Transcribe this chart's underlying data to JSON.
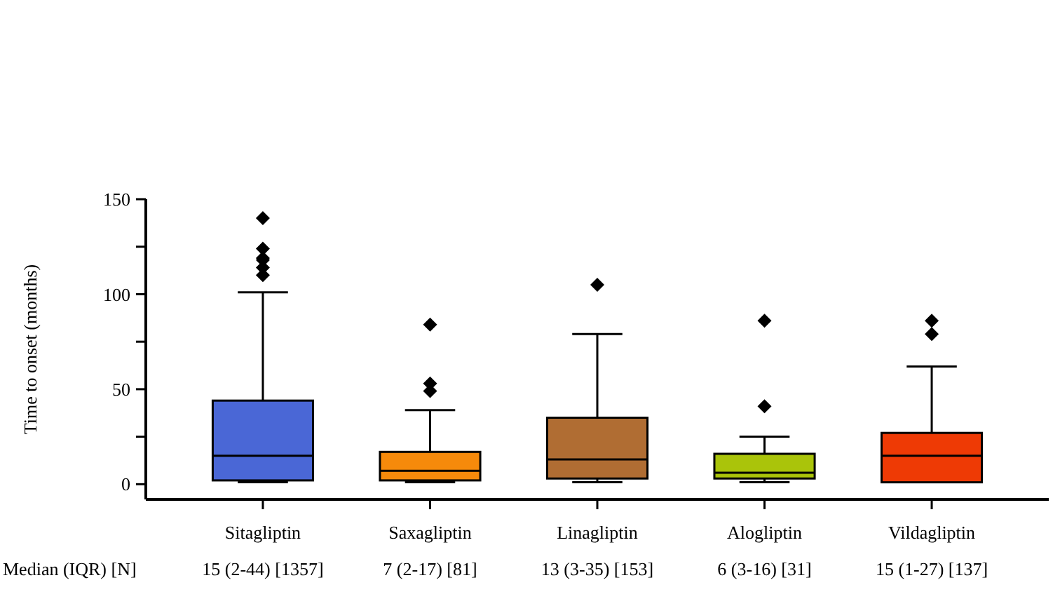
{
  "chart_data": {
    "type": "box",
    "ylabel": "Time to onset (months)",
    "categories": [
      "Sitagliptin",
      "Saxagliptin",
      "Linagliptin",
      "Alogliptin",
      "Vildagliptin"
    ],
    "colors": [
      "#4a67d6",
      "#f68a0b",
      "#b06d33",
      "#aac40a",
      "#ee3a05"
    ],
    "boxes": [
      {
        "low": 1,
        "q1": 2,
        "median": 15,
        "q3": 44,
        "high": 101,
        "outliers": [
          110,
          114,
          118,
          119,
          124,
          140
        ]
      },
      {
        "low": 1,
        "q1": 2,
        "median": 7,
        "q3": 17,
        "high": 39,
        "outliers": [
          49,
          53,
          84
        ]
      },
      {
        "low": 1,
        "q1": 3,
        "median": 13,
        "q3": 35,
        "high": 79,
        "outliers": [
          105
        ]
      },
      {
        "low": 1,
        "q1": 3,
        "median": 6,
        "q3": 16,
        "high": 25,
        "outliers": [
          41,
          86
        ]
      },
      {
        "low": 1,
        "q1": 1,
        "median": 15,
        "q3": 27,
        "high": 62,
        "outliers": [
          79,
          86
        ]
      }
    ],
    "ylim": [
      -8,
      150
    ],
    "yticks": [
      0,
      {
        "value": 25,
        "label": null
      },
      50,
      {
        "value": 75,
        "label": null
      },
      100,
      {
        "value": 125,
        "label": null
      },
      150
    ],
    "annotations": [
      "Median (IQR) [N]",
      "15 (2-44) [1357]",
      "7 (2-17) [81]",
      "13 (3-35) [153]",
      "6 (3-16) [31]",
      "15 (1-27) [137]"
    ]
  }
}
